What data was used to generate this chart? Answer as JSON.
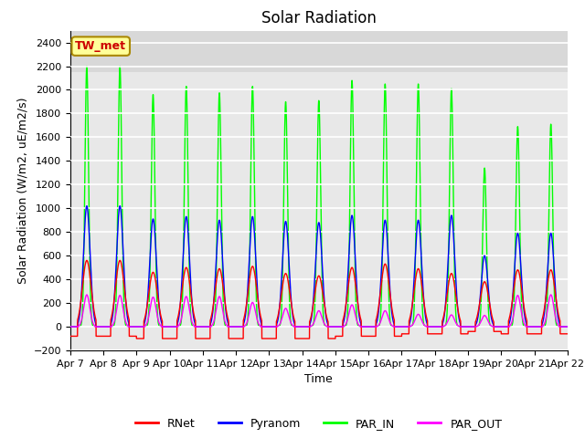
{
  "title": "Solar Radiation",
  "ylabel": "Solar Radiation (W/m2, uE/m2/s)",
  "xlabel": "Time",
  "ylim": [
    -200,
    2500
  ],
  "yticks": [
    -200,
    0,
    200,
    400,
    600,
    800,
    1000,
    1200,
    1400,
    1600,
    1800,
    2000,
    2200,
    2400
  ],
  "xtick_labels": [
    "Apr 7",
    "Apr 8",
    "Apr 9",
    "Apr 10",
    "Apr 11",
    "Apr 12",
    "Apr 13",
    "Apr 14",
    "Apr 15",
    "Apr 16",
    "Apr 17",
    "Apr 18",
    "Apr 19",
    "Apr 20",
    "Apr 21",
    "Apr 22"
  ],
  "colors": {
    "RNet": "#ff0000",
    "Pyranom": "#0000ff",
    "PAR_IN": "#00ff00",
    "PAR_OUT": "#ff00ff"
  },
  "station_label": "TW_met",
  "station_box_facecolor": "#ffff99",
  "station_box_edgecolor": "#aa8800",
  "fig_facecolor": "#ffffff",
  "plot_bg_color": "#e8e8e8",
  "upper_band_color": "#d8d8d8",
  "grid_color": "#ffffff",
  "title_fontsize": 12,
  "axis_label_fontsize": 9,
  "tick_fontsize": 8,
  "n_days": 15,
  "pts_per_day": 288,
  "day_peak_PAR_IN": [
    2200,
    2200,
    1960,
    2030,
    1975,
    2030,
    1900,
    1910,
    2080,
    2050,
    2050,
    2010,
    1340,
    1690,
    1710
  ],
  "day_peak_Pyranom": [
    1020,
    1020,
    910,
    930,
    900,
    930,
    890,
    880,
    940,
    900,
    900,
    940,
    600,
    790,
    790
  ],
  "day_peak_RNet": [
    560,
    560,
    460,
    500,
    490,
    510,
    450,
    430,
    500,
    530,
    490,
    450,
    380,
    480,
    480
  ],
  "day_peak_PAR_OUT": [
    270,
    265,
    250,
    255,
    255,
    205,
    155,
    135,
    185,
    135,
    105,
    100,
    95,
    265,
    270
  ],
  "day_night_RNet": [
    -80,
    -80,
    -100,
    -100,
    -100,
    -100,
    -100,
    -100,
    -80,
    -80,
    -60,
    -60,
    -40,
    -60,
    -60
  ],
  "linewidth": 1.0
}
